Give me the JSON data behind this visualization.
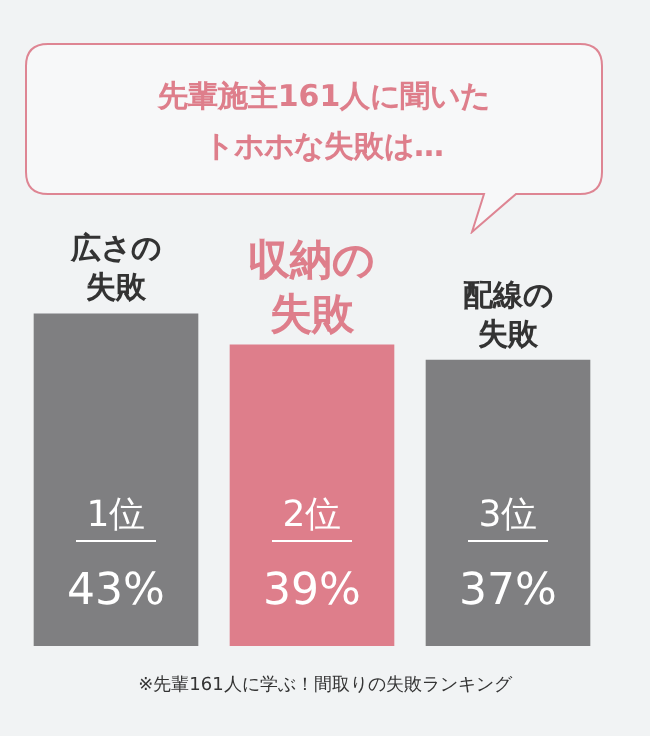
{
  "chart_data": {
    "type": "bar",
    "title": "先輩施主161人に聞いたトホホな失敗は…",
    "categories": [
      "広さの失敗",
      "収納の失敗",
      "配線の失敗"
    ],
    "values": [
      43,
      39,
      37
    ],
    "colors": [
      "#7f7f81",
      "#de7e8b",
      "#7f7f81"
    ],
    "value_labels": [
      "43%",
      "39%",
      "37%"
    ],
    "tick_labels": false,
    "legend": false,
    "annotations": [
      "1位",
      "2位",
      "3位",
      "※先輩161人に学ぶ！間取りの失敗ランキング"
    ]
  }
}
